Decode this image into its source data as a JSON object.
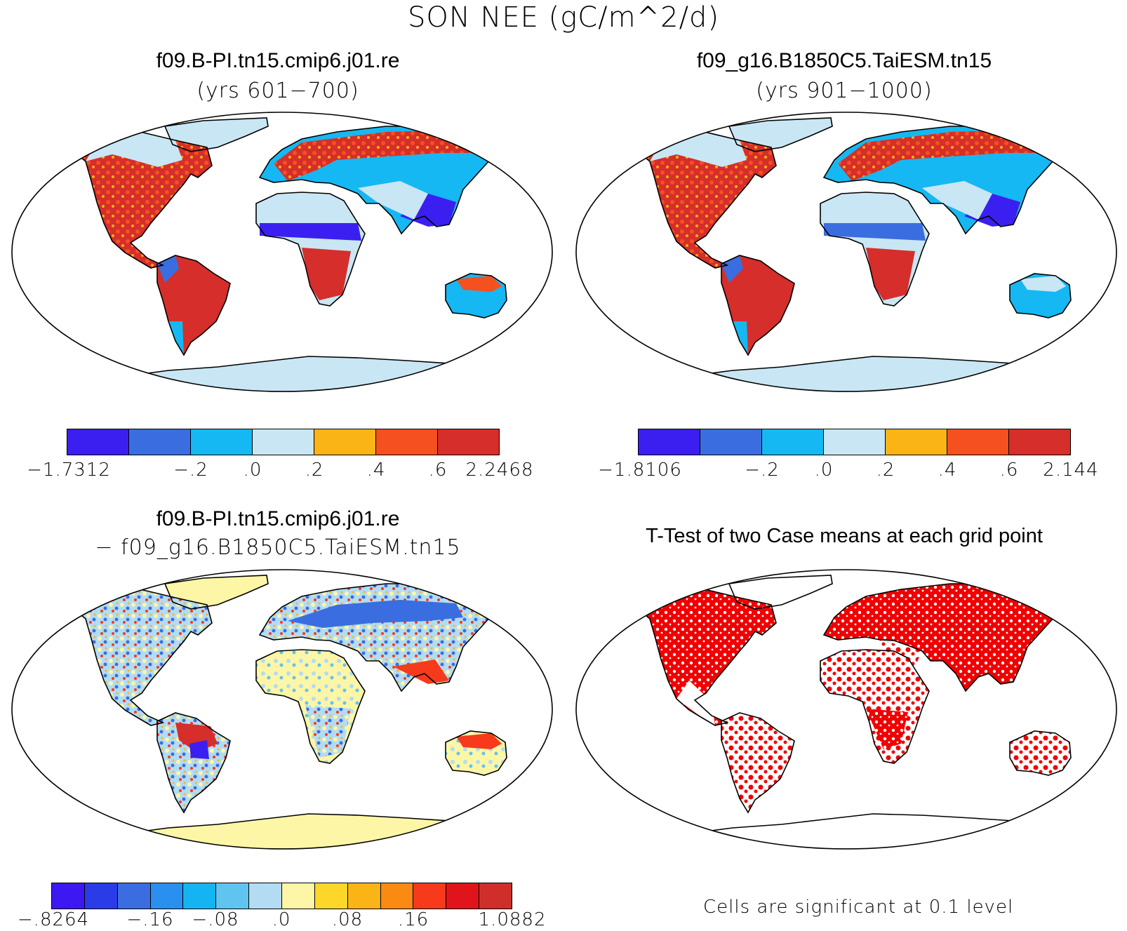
{
  "figure": {
    "title": "SON NEE (gC/m^2/d)"
  },
  "panels": {
    "top_left": {
      "title": "f09.B-PI.tn15.cmip6.j01.re",
      "subtitle": "(yrs 601−700)",
      "colorbar": {
        "colors": [
          "#3b1ff0",
          "#3a6ee0",
          "#15b8f2",
          "#c9e6f4",
          "#fbb416",
          "#f5501f",
          "#d62e2a"
        ],
        "labels": [
          "−1.7312",
          "−.2",
          ".0",
          ".2",
          ".4",
          ".6",
          "2.2468"
        ]
      }
    },
    "top_right": {
      "title": "f09_g16.B1850C5.TaiESM.tn15",
      "subtitle": "(yrs 901−1000)",
      "colorbar": {
        "colors": [
          "#3b1ff0",
          "#3a6ee0",
          "#15b8f2",
          "#c9e6f4",
          "#fbb416",
          "#f5501f",
          "#d62e2a"
        ],
        "labels": [
          "−1.8106",
          "−.2",
          ".0",
          ".2",
          ".4",
          ".6",
          "2.144"
        ]
      }
    },
    "bottom_left": {
      "title": "f09.B-PI.tn15.cmip6.j01.re",
      "subtitle": "− f09_g16.B1850C5.TaiESM.tn15",
      "colorbar": {
        "colors": [
          "#3e18f2",
          "#2a3ce8",
          "#3a6ee0",
          "#2a90f0",
          "#14b4f2",
          "#5fc4f0",
          "#b3dcf2",
          "#fdf6a6",
          "#fdd62a",
          "#fbb416",
          "#fb8a12",
          "#f73a1c",
          "#e0141a",
          "#d02e2a"
        ],
        "labels": [
          "−.8264",
          "−.16",
          "−.08",
          ".0",
          ".08",
          ".16",
          "1.0882"
        ]
      }
    },
    "bottom_right": {
      "title": "T-Test of two Case means at each grid point",
      "footnote": "Cells are significant at 0.1 level",
      "significance_color": "#f00000"
    }
  }
}
